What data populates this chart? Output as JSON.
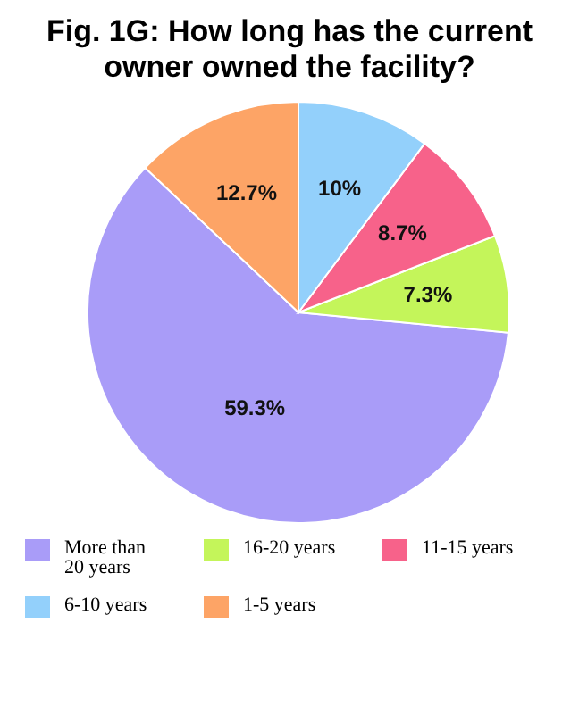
{
  "chart_data": {
    "type": "pie",
    "title": "Fig. 1G: How long has the current owner owned the facility?",
    "categories": [
      "More than 20 years",
      "16-20 years",
      "11-15 years",
      "6-10 years",
      "1-5 years"
    ],
    "values": [
      59.3,
      7.3,
      8.7,
      10,
      12.7
    ],
    "colors": [
      "#a99cf8",
      "#c4f55a",
      "#f7628a",
      "#93d0fb",
      "#fda466"
    ],
    "value_labels": [
      "59.3%",
      "7.3%",
      "8.7%",
      "10%",
      "12.7%"
    ],
    "legend": "bottom"
  }
}
